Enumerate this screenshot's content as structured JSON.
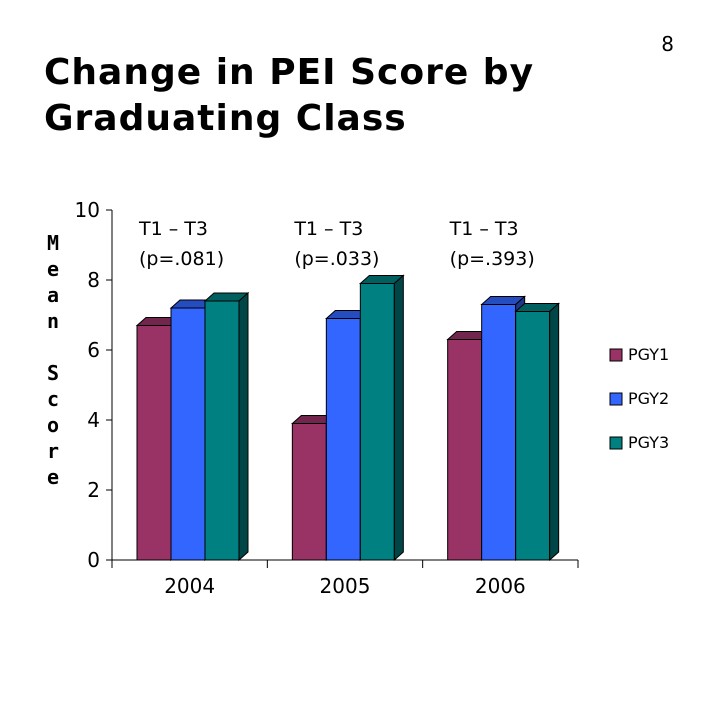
{
  "slide_number": "8",
  "title": "Change in PEI Score by Graduating Class",
  "chart_data": {
    "type": "bar",
    "title": "Change in PEI Score by Graduating Class",
    "ylabel": "Mean Score",
    "xlabel": "",
    "ylim": [
      0,
      10
    ],
    "yticks": [
      0,
      2,
      4,
      6,
      8,
      10
    ],
    "categories": [
      "2004",
      "2005",
      "2006"
    ],
    "series": [
      {
        "name": "PGY1",
        "color": "#993366",
        "values": [
          6.7,
          3.9,
          6.3
        ]
      },
      {
        "name": "PGY2",
        "color": "#3366ff",
        "values": [
          7.2,
          6.9,
          7.3
        ]
      },
      {
        "name": "PGY3",
        "color": "#008080",
        "values": [
          7.4,
          7.9,
          7.1
        ]
      }
    ],
    "annotations": [
      {
        "line1": "T1 – T3",
        "line2": "(p=.081)"
      },
      {
        "line1": "T1 – T3",
        "line2": "(p=.033)"
      },
      {
        "line1": "T1 – T3",
        "line2": "(p=.393)"
      }
    ],
    "grid": false,
    "legend": "right",
    "style": "3d-clustered-column"
  }
}
